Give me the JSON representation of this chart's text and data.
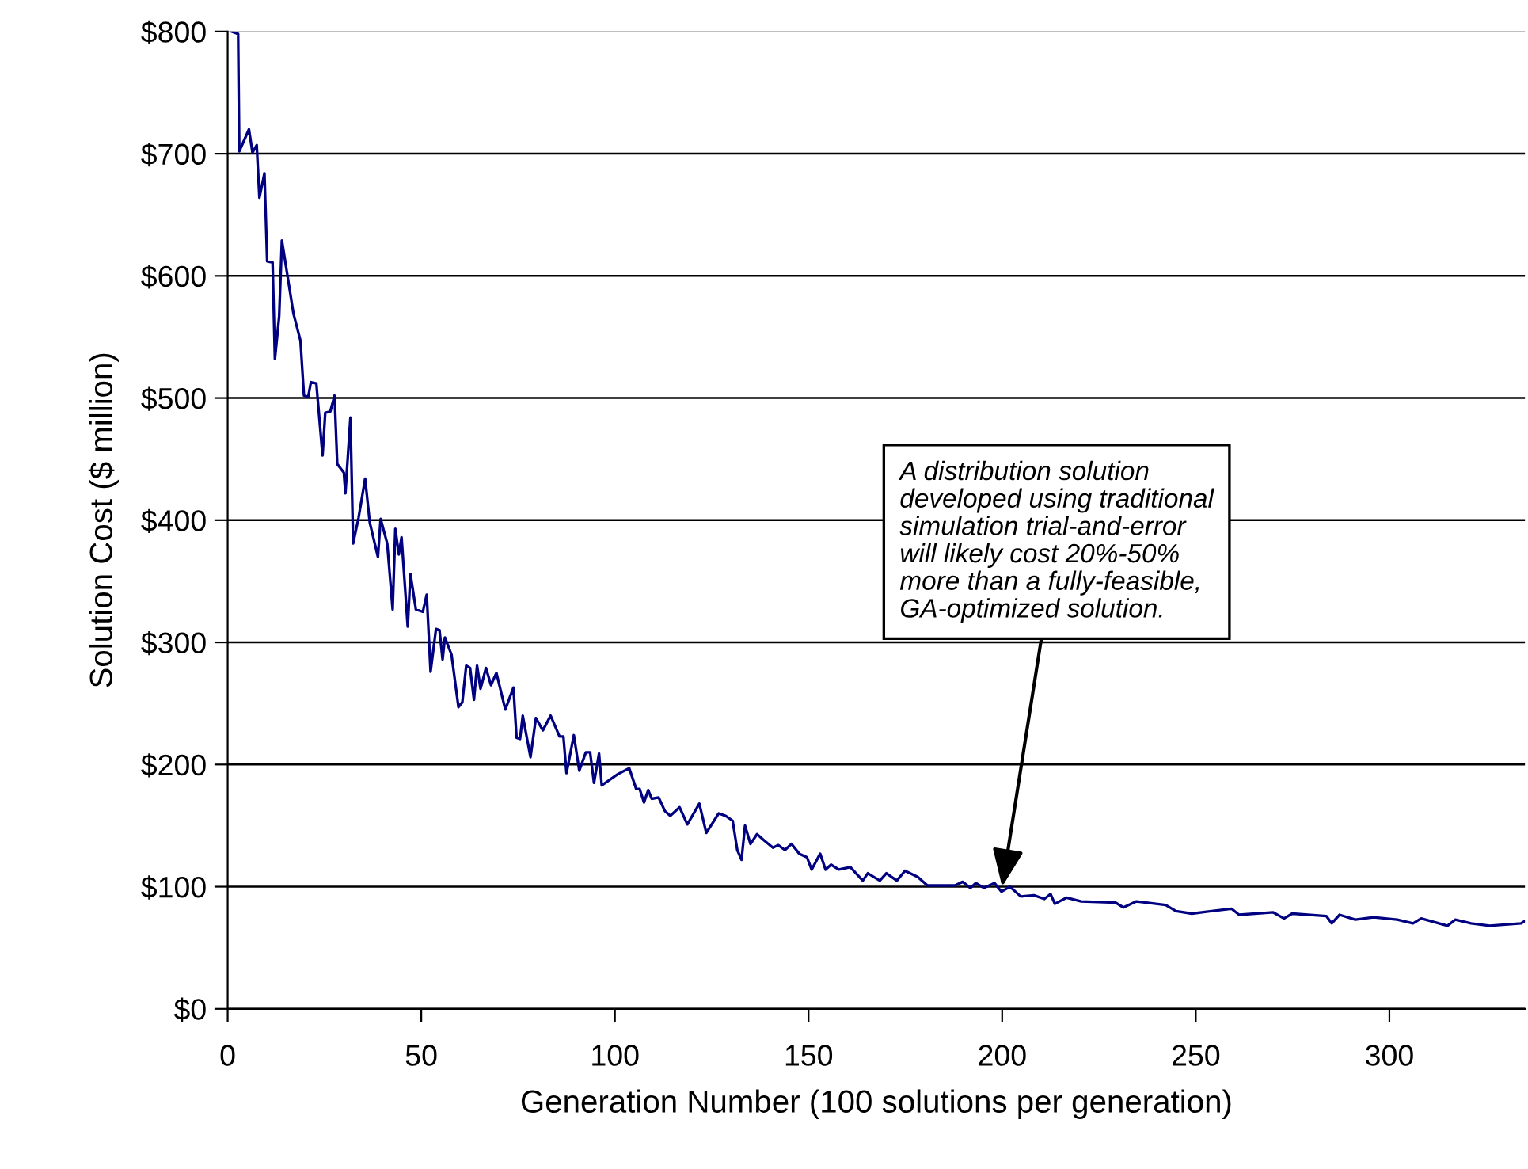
{
  "chart_data": {
    "type": "line",
    "xlabel": "Generation Number (100 solutions per generation)",
    "ylabel": "Solution Cost ($ million)",
    "xlim": [
      0,
      335
    ],
    "xticks": [
      0,
      50,
      100,
      150,
      200,
      250,
      300
    ],
    "ylim": [
      0,
      800
    ],
    "yticks": [
      {
        "value": 0,
        "label": "$0"
      },
      {
        "value": 100,
        "label": "$100"
      },
      {
        "value": 200,
        "label": "$200"
      },
      {
        "value": 300,
        "label": "$300"
      },
      {
        "value": 400,
        "label": "$400"
      },
      {
        "value": 500,
        "label": "$500"
      },
      {
        "value": 600,
        "label": "$600"
      },
      {
        "value": 700,
        "label": "$700"
      },
      {
        "value": 800,
        "label": "$800"
      }
    ],
    "grid": "y",
    "marker": "none",
    "line_style": "solid",
    "series": [
      {
        "color": "#000080",
        "x": [
          1,
          2.7,
          3,
          5.5,
          6.4,
          7.5,
          8.2,
          9.5,
          10.2,
          11.6,
          12.2,
          13.3,
          14,
          15.7,
          17,
          18.8,
          19.7,
          20.8,
          21.5,
          22.9,
          24.5,
          25.2,
          26.5,
          27.6,
          28.3,
          30,
          30.4,
          31.7,
          32.4,
          33.8,
          35.5,
          36.7,
          38.8,
          39.5,
          41.2,
          42.6,
          43.3,
          44.2,
          44.9,
          46.5,
          47.2,
          48.6,
          50.4,
          51.4,
          52.4,
          53.8,
          54.7,
          55.5,
          56.1,
          57.8,
          59.6,
          60.6,
          61.6,
          62.6,
          63.6,
          64.4,
          65.3,
          66.7,
          68,
          69.4,
          71.7,
          73.8,
          74.6,
          75.5,
          76.2,
          78.2,
          79.6,
          81.4,
          83.4,
          85.7,
          86.7,
          87.5,
          89.4,
          90.8,
          92.5,
          93.6,
          94.6,
          95.9,
          96.6,
          100.7,
          103.7,
          105.5,
          106.4,
          107.5,
          108.6,
          109.5,
          111.3,
          112.9,
          114.3,
          116.7,
          118.7,
          121.8,
          123.6,
          126.8,
          128.6,
          130.4,
          131.6,
          132.7,
          133.6,
          135,
          136.7,
          138.5,
          140.8,
          142.2,
          143.9,
          145.6,
          147.6,
          149.6,
          150.8,
          153,
          154.4,
          155.8,
          157.8,
          160.8,
          164,
          165.3,
          168.4,
          170.1,
          172.8,
          174.9,
          178.2,
          180.7,
          187.8,
          189.8,
          191.8,
          193.2,
          195.3,
          198,
          199.8,
          202,
          204.8,
          208.2,
          210.9,
          212.5,
          213.6,
          216.6,
          220.4,
          229.3,
          231.3,
          234.7,
          242.2,
          244.9,
          249,
          259.2,
          261.2,
          270,
          272.8,
          274.9,
          283.7,
          285.1,
          287.1,
          291.2,
          295.9,
          302,
          306.1,
          308.2,
          315,
          317,
          321.1,
          325.9,
          334,
          335
        ],
        "values": [
          800,
          798,
          702,
          720,
          701,
          707,
          664,
          684,
          612,
          611,
          532,
          567,
          629,
          595,
          569,
          547,
          502,
          501,
          513,
          512,
          453,
          488,
          489,
          502,
          446,
          439,
          422,
          484,
          381,
          402,
          434,
          398,
          370,
          401,
          381,
          327,
          393,
          372,
          386,
          313,
          356,
          327,
          325,
          339,
          276,
          311,
          310,
          286,
          304,
          290,
          247,
          251,
          281,
          279,
          253,
          281,
          262,
          279,
          265,
          275,
          245,
          263,
          222,
          221,
          240,
          206,
          238,
          228,
          240,
          223,
          223,
          193,
          224,
          195,
          210,
          210,
          185,
          209,
          183,
          192,
          197,
          180,
          180,
          169,
          179,
          172,
          173,
          162,
          158,
          165,
          151,
          168,
          144,
          160,
          158,
          154,
          130,
          122,
          150,
          135,
          143,
          138,
          132,
          134,
          130,
          135,
          127,
          124,
          114,
          127,
          114,
          118,
          114,
          116,
          105,
          111,
          105,
          111,
          105,
          113,
          108,
          101,
          101,
          104,
          99,
          103,
          99,
          103,
          96,
          100,
          92,
          93,
          90,
          94,
          86,
          91,
          88,
          87,
          83,
          88,
          85,
          80,
          78,
          82,
          77,
          79,
          74,
          78,
          76,
          70,
          77,
          73,
          75,
          73,
          70,
          74,
          68,
          73,
          70,
          68,
          70,
          72
        ]
      }
    ],
    "annotations": [
      {
        "text": "A distribution solution\ndeveloped using traditional\nsimulation trial-and-error\nwill likely cost 20%-50%\nmore than a fully-feasible,\nGA-optimized solution.",
        "x": 200,
        "y": 100
      }
    ]
  }
}
